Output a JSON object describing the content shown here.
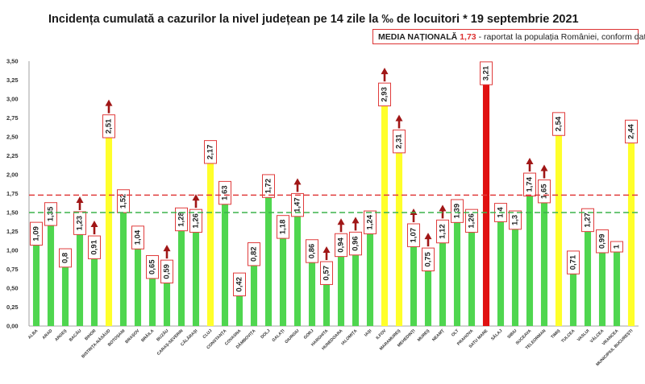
{
  "title": "Incidența cumulată a cazurilor la nivel județean pe 14 zile la ‰ de locuitori * 19 septembrie 2021",
  "note": {
    "label": "MEDIA NAȚIONALĂ",
    "value": "1,73",
    "text": "- raportat la populația României, conform datelor INS"
  },
  "colors": {
    "green": "#4fd64f",
    "yellow": "#ffff2a",
    "red": "#e01010",
    "arrow": "#a01616",
    "national_line": "#e03c3c",
    "baseline_line": "#3cb44b",
    "label_border": "#e03c3c"
  },
  "chart_data": {
    "type": "bar",
    "title": "Incidența cumulată a cazurilor la nivel județean pe 14 zile la ‰ de locuitori * 19 septembrie 2021",
    "xlabel": "",
    "ylabel": "",
    "ylim": [
      0,
      3.5
    ],
    "yticks": [
      "0,00",
      "0,25",
      "0,50",
      "0,75",
      "1,00",
      "1,25",
      "1,50",
      "1,75",
      "2,00",
      "2,25",
      "2,50",
      "2,75",
      "3,00",
      "3,25",
      "3,50"
    ],
    "grid": false,
    "reference_lines": [
      {
        "value": 1.73,
        "style": "dashed",
        "color": "red"
      },
      {
        "value": 1.5,
        "style": "dashed",
        "color": "green"
      }
    ],
    "categories": [
      "ALBA",
      "ARAD",
      "ARGEȘ",
      "BACĂU",
      "BIHOR",
      "BISTRIȚA-NĂSĂUD",
      "BOTOȘANI",
      "BRAȘOV",
      "BRĂILA",
      "BUZĂU",
      "CARAȘ-SEVERIN",
      "CĂLĂRAȘI",
      "CLUJ",
      "CONSTANȚA",
      "COVASNA",
      "DÂMBOVIȚA",
      "DOLJ",
      "GALAȚI",
      "GIURGIU",
      "GORJ",
      "HARGHITA",
      "HUNEDOARA",
      "IALOMIȚA",
      "IAȘI",
      "ILFOV",
      "MARAMUREȘ",
      "MEHEDINȚI",
      "MUREȘ",
      "NEAMȚ",
      "OLT",
      "PRAHOVA",
      "SATU MARE",
      "SĂLAJ",
      "SIBIU",
      "SUCEAVA",
      "TELEORMAN",
      "TIMIȘ",
      "TULCEA",
      "VASLUI",
      "VÂLCEA",
      "VRANCEA",
      "MUNICIPIUL BUCUREȘTI"
    ],
    "values": [
      1.09,
      1.35,
      0.8,
      1.23,
      0.91,
      2.51,
      1.52,
      1.04,
      0.65,
      0.59,
      1.28,
      1.26,
      2.17,
      1.63,
      0.42,
      0.82,
      1.72,
      1.18,
      1.47,
      0.86,
      0.57,
      0.94,
      0.96,
      1.24,
      2.93,
      2.31,
      1.07,
      0.75,
      1.12,
      1.39,
      1.26,
      3.21,
      1.4,
      1.3,
      1.74,
      1.65,
      2.54,
      0.71,
      1.27,
      0.99,
      1,
      2.44
    ],
    "labels": [
      "1,09",
      "1,35",
      "0,8",
      "1,23",
      "0,91",
      "2,51",
      "1,52",
      "1,04",
      "0,65",
      "0,59",
      "1,28",
      "1,26",
      "2,17",
      "1,63",
      "0,42",
      "0,82",
      "1,72",
      "1,18",
      "1,47",
      "0,86",
      "0,57",
      "0,94",
      "0,96",
      "1,24",
      "2,93",
      "2,31",
      "1,07",
      "0,75",
      "1,12",
      "1,39",
      "1,26",
      "3,21",
      "1,4",
      "1,3",
      "1,74",
      "1,65",
      "2,54",
      "0,71",
      "1,27",
      "0,99",
      "1",
      "2,44"
    ],
    "bar_colors": [
      "green",
      "green",
      "green",
      "green",
      "green",
      "yellow",
      "green",
      "green",
      "green",
      "green",
      "green",
      "green",
      "yellow",
      "green",
      "green",
      "green",
      "green",
      "green",
      "green",
      "green",
      "green",
      "green",
      "green",
      "green",
      "yellow",
      "yellow",
      "green",
      "green",
      "green",
      "green",
      "green",
      "red",
      "green",
      "green",
      "green",
      "green",
      "yellow",
      "green",
      "green",
      "green",
      "green",
      "yellow"
    ],
    "up_arrows": [
      false,
      false,
      false,
      true,
      true,
      true,
      false,
      false,
      false,
      true,
      false,
      true,
      false,
      false,
      false,
      false,
      false,
      false,
      true,
      false,
      true,
      true,
      true,
      false,
      true,
      true,
      true,
      true,
      true,
      false,
      false,
      false,
      false,
      false,
      true,
      true,
      false,
      false,
      false,
      false,
      false,
      false
    ]
  }
}
